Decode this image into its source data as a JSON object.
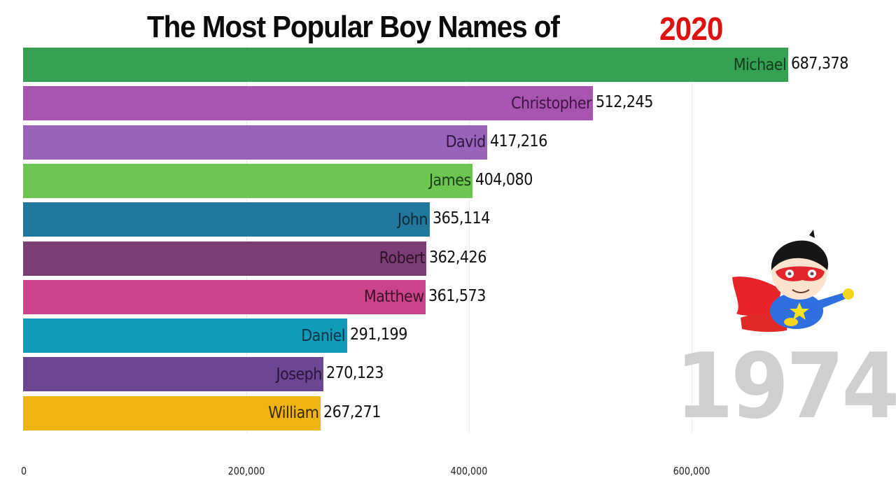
{
  "title": {
    "main": "The Most Popular Boy Names of",
    "year": "2020"
  },
  "current_year": "1974",
  "axis": {
    "ticks": [
      {
        "value": 0,
        "label": "0"
      },
      {
        "value": 200000,
        "label": "200,000"
      },
      {
        "value": 400000,
        "label": "400,000"
      },
      {
        "value": 600000,
        "label": "600,000"
      }
    ]
  },
  "illustration": "superhero-boy-icon",
  "chart_data": {
    "type": "bar",
    "orientation": "horizontal",
    "title": "The Most Popular Boy Names of 2020",
    "subtitle": "1974",
    "xlabel": "",
    "ylabel": "",
    "xlim": [
      0,
      687378
    ],
    "grid": true,
    "legend": "none",
    "categories": [
      "Michael",
      "Christopher",
      "David",
      "James",
      "John",
      "Robert",
      "Matthew",
      "Daniel",
      "Joseph",
      "William"
    ],
    "values": [
      687378,
      512245,
      417216,
      404080,
      365114,
      362426,
      361573,
      291199,
      270123,
      267271
    ],
    "value_labels": [
      "687,378",
      "512,245",
      "417,216",
      "404,080",
      "365,114",
      "362,426",
      "361,573",
      "291,199",
      "270,123",
      "267,271"
    ],
    "colors": [
      "#36a152",
      "#a855b2",
      "#9863b8",
      "#6cc651",
      "#22779c",
      "#7a3e74",
      "#c9448a",
      "#109bbb",
      "#6b4793",
      "#eeb412"
    ],
    "label_colors": [
      "#123a1c",
      "#3d1442",
      "#2e1742",
      "#1d3d16",
      "#0b2a38",
      "#2c1028",
      "#3e1029",
      "#0a3440",
      "#26143c",
      "#3a2a03"
    ],
    "x_ticks": [
      "0",
      "200,000",
      "400,000",
      "600,000"
    ]
  }
}
